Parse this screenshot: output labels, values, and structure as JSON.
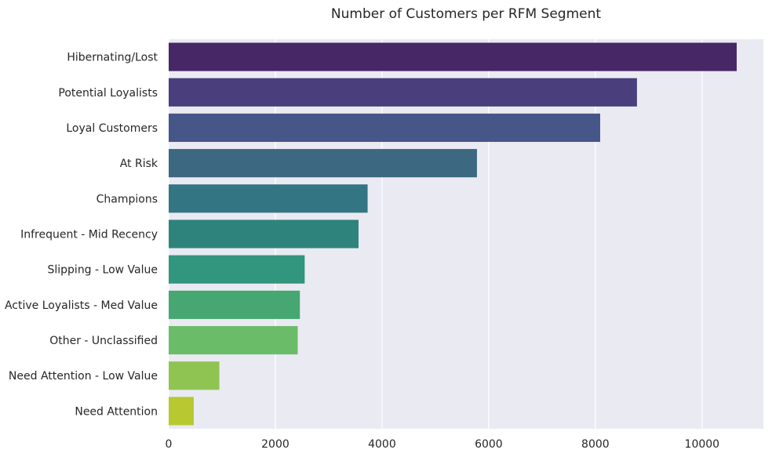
{
  "chart_data": {
    "type": "bar",
    "orientation": "horizontal",
    "title": "Number of Customers per RFM Segment",
    "xlabel": "",
    "ylabel": "",
    "xlim": [
      0,
      11150
    ],
    "xticks": [
      0,
      2000,
      4000,
      6000,
      8000,
      10000
    ],
    "grid": true,
    "categories": [
      "Hibernating/Lost",
      "Potential Loyalists",
      "Loyal Customers",
      "At Risk",
      "Champions",
      "Infrequent - Mid Recency",
      "Slipping - Low Value",
      "Active Loyalists - Med Value",
      "Other - Unclassified",
      "Need Attention - Low Value",
      "Need Attention"
    ],
    "values": [
      10650,
      8780,
      8090,
      5780,
      3730,
      3560,
      2550,
      2460,
      2420,
      950,
      470
    ],
    "colors": [
      "#472766",
      "#4a3f7c",
      "#465689",
      "#3d6882",
      "#347583",
      "#2e847c",
      "#32957e",
      "#46a772",
      "#6bbc68",
      "#8fc453",
      "#b7c831"
    ],
    "background_color": "#eaeaf2",
    "grid_color": "#ffffff"
  }
}
